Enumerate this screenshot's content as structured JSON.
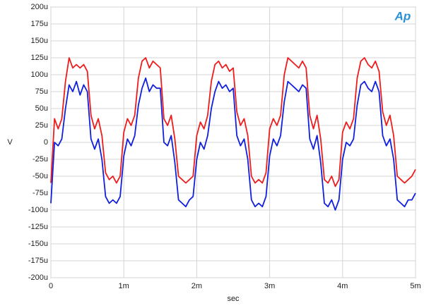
{
  "chart_data": {
    "type": "line",
    "logo": "Ap",
    "x_label": "sec",
    "y_label": "V",
    "xlim": [
      0,
      0.005
    ],
    "ylim": [
      -0.0002,
      0.0002
    ],
    "xticks": [
      0,
      {
        "value": 0.001,
        "label": "1m"
      },
      {
        "value": 0.002,
        "label": "2m"
      },
      {
        "value": 0.003,
        "label": "3m"
      },
      {
        "value": 0.004,
        "label": "4m"
      },
      {
        "value": 0.005,
        "label": "5m"
      }
    ],
    "yticks": [
      {
        "value": 0.0002,
        "label": "200u"
      },
      {
        "value": 0.000175,
        "label": "175u"
      },
      {
        "value": 0.00015,
        "label": "150u"
      },
      {
        "value": 0.000125,
        "label": "125u"
      },
      {
        "value": 0.0001,
        "label": "100u"
      },
      {
        "value": 7.5e-05,
        "label": "75u"
      },
      {
        "value": 5e-05,
        "label": "50u"
      },
      {
        "value": 2.5e-05,
        "label": "25u"
      },
      0,
      {
        "value": -2.5e-05,
        "label": "-25u"
      },
      {
        "value": -5e-05,
        "label": "-50u"
      },
      {
        "value": -7.5e-05,
        "label": "-75u"
      },
      {
        "value": -0.0001,
        "label": "-100u"
      },
      {
        "value": -0.000125,
        "label": "-125u"
      },
      {
        "value": -0.00015,
        "label": "-150u"
      },
      {
        "value": -0.000175,
        "label": "-175u"
      },
      {
        "value": -0.0002,
        "label": "-200u"
      }
    ],
    "grid": true,
    "x": [
      0,
      5e-05,
      0.0001,
      0.00015,
      0.0002,
      0.00025,
      0.0003,
      0.00035,
      0.0004,
      0.00045,
      0.0005,
      0.00055,
      0.0006,
      0.00065,
      0.0007,
      0.00075,
      0.0008,
      0.00085,
      0.0009,
      0.00095,
      0.001,
      0.00105,
      0.0011,
      0.00115,
      0.0012,
      0.00125,
      0.0013,
      0.00135,
      0.0014,
      0.00145,
      0.0015,
      0.00155,
      0.0016,
      0.00165,
      0.0017,
      0.00175,
      0.0018,
      0.00185,
      0.0019,
      0.00195,
      0.002,
      0.00205,
      0.0021,
      0.00215,
      0.0022,
      0.00225,
      0.0023,
      0.00235,
      0.0024,
      0.00245,
      0.0025,
      0.00255,
      0.0026,
      0.00265,
      0.0027,
      0.00275,
      0.0028,
      0.00285,
      0.0029,
      0.00295,
      0.003,
      0.00305,
      0.0031,
      0.00315,
      0.0032,
      0.00325,
      0.0033,
      0.00335,
      0.0034,
      0.00345,
      0.0035,
      0.00355,
      0.0036,
      0.00365,
      0.0037,
      0.00375,
      0.0038,
      0.00385,
      0.0039,
      0.00395,
      0.004,
      0.00405,
      0.0041,
      0.00415,
      0.0042,
      0.00425,
      0.0043,
      0.00435,
      0.0044,
      0.00445,
      0.0045,
      0.00455,
      0.0046,
      0.00465,
      0.0047,
      0.00475,
      0.0048,
      0.00485,
      0.0049,
      0.00495,
      0.005
    ],
    "series": [
      {
        "color": "#ee1c1c",
        "values": [
          -6e-05,
          3.5e-05,
          2e-05,
          3.5e-05,
          9e-05,
          0.000125,
          0.00011,
          0.000115,
          0.00011,
          0.000115,
          0.000105,
          4e-05,
          2e-05,
          3.5e-05,
          1e-05,
          -4.5e-05,
          -5.5e-05,
          -5e-05,
          -6e-05,
          -5e-05,
          1.5e-05,
          3.5e-05,
          2.5e-05,
          4e-05,
          9.5e-05,
          0.00012,
          0.000125,
          0.00011,
          0.00012,
          0.000115,
          0.00011,
          3.5e-05,
          2.5e-05,
          4e-05,
          5e-06,
          -5e-05,
          -5.5e-05,
          -6e-05,
          -5.5e-05,
          -5e-05,
          1e-05,
          3e-05,
          2e-05,
          4e-05,
          9e-05,
          0.000115,
          0.00012,
          0.00011,
          0.000115,
          0.000105,
          0.00011,
          4.5e-05,
          2.5e-05,
          3.5e-05,
          1e-05,
          -5e-05,
          -6e-05,
          -5.5e-05,
          -6e-05,
          -4.5e-05,
          2e-05,
          3.5e-05,
          2.5e-05,
          4e-05,
          0.0001,
          0.000125,
          0.00012,
          0.000115,
          0.00011,
          0.00012,
          0.00011,
          4e-05,
          2e-05,
          4e-05,
          5e-06,
          -5.5e-05,
          -6e-05,
          -5e-05,
          -6.5e-05,
          -5.5e-05,
          1.5e-05,
          3e-05,
          2e-05,
          3.5e-05,
          9.5e-05,
          0.00012,
          0.000125,
          0.000115,
          0.00011,
          0.00012,
          0.000105,
          4.5e-05,
          2.5e-05,
          4e-05,
          1e-05,
          -5e-05,
          -5.5e-05,
          -6e-05,
          -5.5e-05,
          -5e-05,
          -4e-05
        ]
      },
      {
        "color": "#1020dc",
        "values": [
          -9e-05,
          0,
          -5e-06,
          5e-06,
          5e-05,
          8.5e-05,
          7.5e-05,
          9e-05,
          7e-05,
          8.5e-05,
          7.5e-05,
          5e-06,
          -1e-05,
          5e-06,
          -2.5e-05,
          -8e-05,
          -9e-05,
          -8.5e-05,
          -9e-05,
          -8e-05,
          -2e-05,
          5e-06,
          -5e-06,
          1e-05,
          5.5e-05,
          8e-05,
          9.5e-05,
          7.5e-05,
          8.5e-05,
          8e-05,
          8e-05,
          0,
          -5e-06,
          1e-05,
          -3e-05,
          -8.5e-05,
          -9e-05,
          -9.5e-05,
          -8.5e-05,
          -8e-05,
          -2.5e-05,
          0,
          -1e-05,
          1e-05,
          5e-05,
          7.5e-05,
          9e-05,
          8e-05,
          8.5e-05,
          7.5e-05,
          8e-05,
          1e-05,
          -5e-06,
          5e-06,
          -2.5e-05,
          -8.5e-05,
          -9.5e-05,
          -9e-05,
          -9.5e-05,
          -8e-05,
          -2e-05,
          5e-06,
          -5e-06,
          1e-05,
          6e-05,
          9e-05,
          8.5e-05,
          8e-05,
          7.5e-05,
          8.5e-05,
          8e-05,
          5e-06,
          -1e-05,
          1e-05,
          -3e-05,
          -9e-05,
          -9.5e-05,
          -8.5e-05,
          -0.0001,
          -8.5e-05,
          -2.5e-05,
          0,
          -5e-06,
          5e-06,
          5.5e-05,
          8.5e-05,
          9e-05,
          8e-05,
          7.5e-05,
          9e-05,
          7.5e-05,
          1e-05,
          -5e-06,
          5e-06,
          -2.5e-05,
          -8.5e-05,
          -9e-05,
          -9.5e-05,
          -8.5e-05,
          -8.5e-05,
          -7.5e-05
        ]
      }
    ]
  }
}
